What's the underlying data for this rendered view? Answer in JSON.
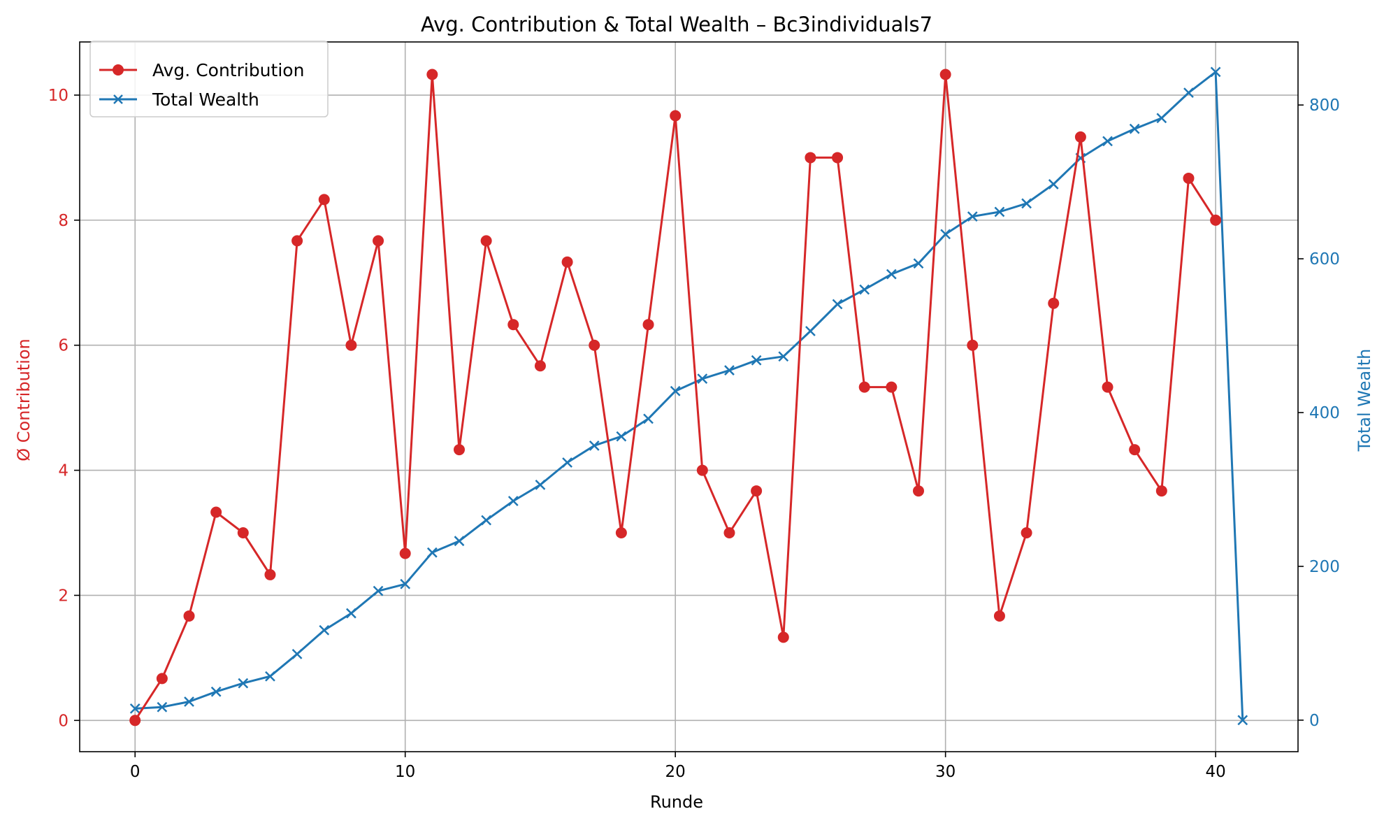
{
  "chart_data": {
    "type": "line",
    "title": "Avg. Contribution & Total Wealth – Bc3individuals7",
    "xlabel": "Runde",
    "ylabel_left": "Ø Contribution",
    "ylabel_right": "Total Wealth",
    "xlim": [
      -2.05,
      43.05
    ],
    "ylim_left": [
      -0.5,
      10.85
    ],
    "ylim_right": [
      -41,
      882
    ],
    "x_ticks": [
      0,
      10,
      20,
      30,
      40
    ],
    "y_ticks_left": [
      0,
      2,
      4,
      6,
      8,
      10
    ],
    "y_ticks_right": [
      0,
      200,
      400,
      600,
      800
    ],
    "grid": true,
    "legend_position": "upper left",
    "colors": {
      "contribution": "#d62728",
      "wealth": "#1f77b4"
    },
    "series": [
      {
        "name": "Avg. Contribution",
        "axis": "left",
        "marker": "circle",
        "x": [
          0,
          1,
          2,
          3,
          4,
          5,
          6,
          7,
          8,
          9,
          10,
          11,
          12,
          13,
          14,
          15,
          16,
          17,
          18,
          19,
          20,
          21,
          22,
          23,
          24,
          25,
          26,
          27,
          28,
          29,
          30,
          31,
          32,
          33,
          34,
          35,
          36,
          37,
          38,
          39,
          40
        ],
        "values": [
          0,
          0.67,
          1.67,
          3.33,
          3,
          2.33,
          7.67,
          8.33,
          6,
          7.67,
          2.67,
          10.33,
          4.33,
          7.67,
          6.33,
          5.67,
          7.33,
          6,
          3,
          6.33,
          9.67,
          4,
          3,
          3.67,
          1.33,
          9,
          9,
          5.33,
          5.33,
          3.67,
          10.33,
          6,
          1.67,
          3,
          6.67,
          9.33,
          5.33,
          4.33,
          3.67,
          8.67,
          8
        ]
      },
      {
        "name": "Total Wealth",
        "axis": "right",
        "marker": "x",
        "x": [
          0,
          1,
          2,
          3,
          4,
          5,
          6,
          7,
          8,
          9,
          10,
          11,
          12,
          13,
          14,
          15,
          16,
          17,
          18,
          19,
          20,
          21,
          22,
          23,
          24,
          25,
          26,
          27,
          28,
          29,
          30,
          31,
          32,
          33,
          34,
          35,
          36,
          37,
          38,
          39,
          40,
          41
        ],
        "values": [
          15,
          17,
          24,
          37,
          48,
          57,
          86,
          117,
          139,
          168,
          177,
          218,
          233,
          260,
          285,
          306,
          335,
          357,
          369,
          392,
          428,
          444,
          455,
          468,
          473,
          506,
          541,
          560,
          580,
          594,
          632,
          655,
          661,
          672,
          697,
          731,
          753,
          769,
          783,
          816,
          843,
          0
        ]
      }
    ]
  }
}
